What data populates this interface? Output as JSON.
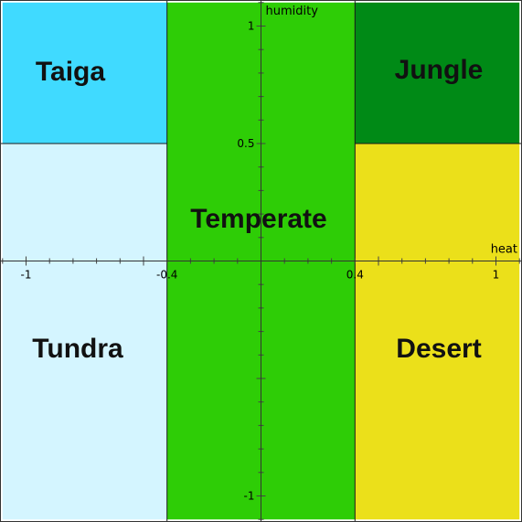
{
  "chart_data": {
    "type": "diagram",
    "axes": {
      "x": {
        "label": "heat",
        "range": [
          -1.1,
          1.1
        ],
        "tick_labels": [
          "-1",
          "-0.4",
          "0.4",
          "1"
        ],
        "tick_values": [
          -1,
          -0.4,
          0.4,
          1
        ]
      },
      "y": {
        "label": "humidity",
        "range": [
          -1.1,
          1.1
        ],
        "tick_labels": [
          "1",
          "0.5",
          "-1"
        ],
        "tick_values": [
          1,
          0.5,
          -1
        ]
      }
    },
    "regions": [
      {
        "name": "Taiga",
        "x": [
          -1.1,
          -0.4
        ],
        "y": [
          0.5,
          1.1
        ],
        "color": "#40daff"
      },
      {
        "name": "Tundra",
        "x": [
          -1.1,
          -0.4
        ],
        "y": [
          -1.1,
          0.5
        ],
        "color": "#d4f5ff"
      },
      {
        "name": "Temperate",
        "x": [
          -0.4,
          0.4
        ],
        "y": [
          -1.1,
          1.1
        ],
        "color": "#2ecd06"
      },
      {
        "name": "Jungle",
        "x": [
          0.4,
          1.1
        ],
        "y": [
          0.5,
          1.1
        ],
        "color": "#008a16"
      },
      {
        "name": "Desert",
        "x": [
          0.4,
          1.1
        ],
        "y": [
          -1.1,
          0.5
        ],
        "color": "#ebe01a"
      }
    ]
  },
  "labels": {
    "taiga": "Taiga",
    "tundra": "Tundra",
    "temperate": "Temperate",
    "jungle": "Jungle",
    "desert": "Desert",
    "x_axis": "heat",
    "y_axis": "humidity",
    "x_ticks": [
      "-1",
      "-0.4",
      "0.4",
      "1"
    ],
    "y_ticks": [
      "1",
      "0.5",
      "-1"
    ]
  }
}
